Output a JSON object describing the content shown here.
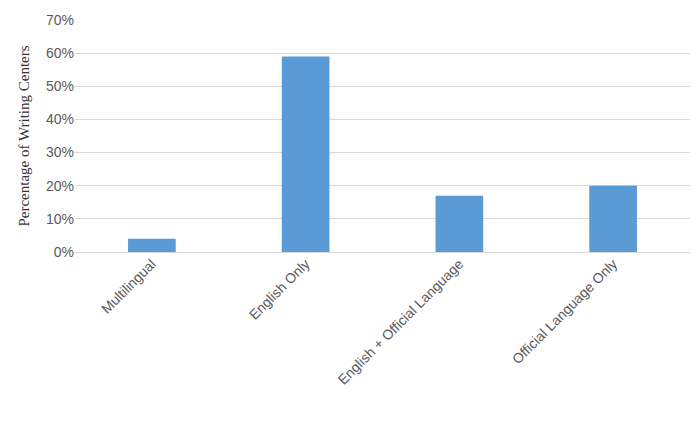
{
  "chart_data": {
    "type": "bar",
    "y_label": "Percentage of Writing Centers",
    "categories": [
      "Multilingual",
      "English Only",
      "English + Official Language",
      "Official Language Only"
    ],
    "values": [
      4,
      59,
      17,
      20
    ],
    "color": "#5b9bd5",
    "ylim": [
      0,
      70
    ],
    "yticks": [
      {
        "value": 0,
        "label": "0%"
      },
      {
        "value": 10,
        "label": "10%"
      },
      {
        "value": 20,
        "label": "20%"
      },
      {
        "value": 30,
        "label": "30%"
      },
      {
        "value": 40,
        "label": "40%"
      },
      {
        "value": 50,
        "label": "50%"
      },
      {
        "value": 60,
        "label": "60%"
      },
      {
        "value": 70,
        "label": "70%"
      }
    ],
    "grid": true
  }
}
